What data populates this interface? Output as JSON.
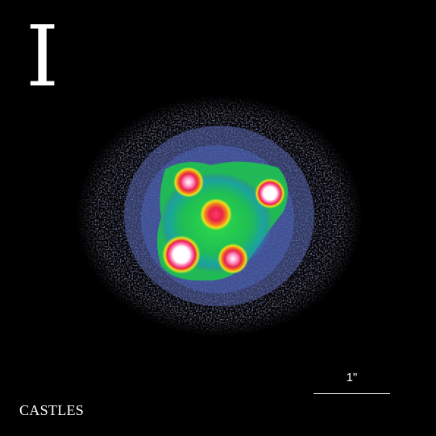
{
  "image": {
    "band_label": "I",
    "credit": "CASTLES",
    "scale_label": "1\"",
    "colors": {
      "background": "#000000",
      "text": "#ffffff",
      "halo_outer": "#7a7a9e",
      "halo_inner": "#4a6ab8",
      "galaxy_glow": "#22c840",
      "core_yellow": "#f2e21a",
      "core_red": "#e8224a",
      "core_white": "#ffffff"
    }
  }
}
